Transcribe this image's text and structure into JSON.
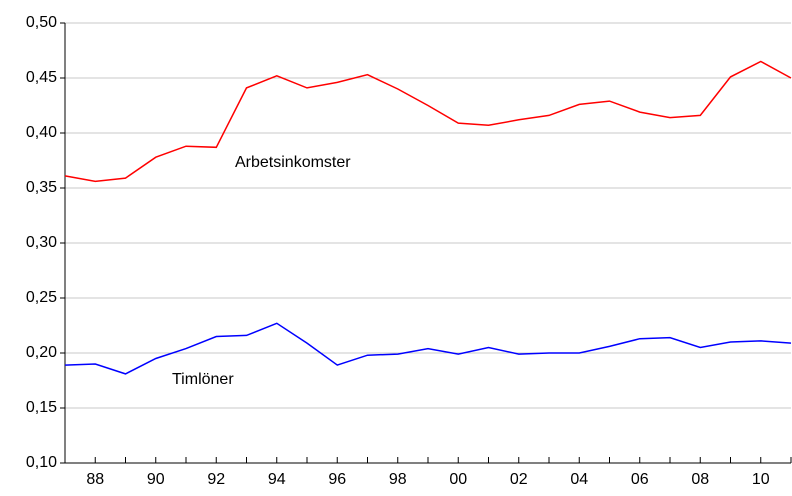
{
  "chart_data": {
    "type": "line",
    "categories": [
      null,
      "88",
      null,
      "90",
      null,
      "92",
      null,
      "94",
      null,
      "96",
      null,
      "98",
      null,
      "00",
      null,
      "02",
      null,
      "04",
      null,
      "06",
      null,
      "08",
      null,
      "10",
      null
    ],
    "series": [
      {
        "name": "Arbetsinkomster",
        "color": "#ff0000",
        "values": [
          0.361,
          0.356,
          0.359,
          0.378,
          0.388,
          0.387,
          0.441,
          0.452,
          0.441,
          0.446,
          0.453,
          0.44,
          0.425,
          0.409,
          0.407,
          0.412,
          0.416,
          0.426,
          0.429,
          0.419,
          0.414,
          0.416,
          0.451,
          0.465,
          0.45
        ]
      },
      {
        "name": "Timlöner",
        "color": "#0000ff",
        "values": [
          0.189,
          0.19,
          0.181,
          0.195,
          0.204,
          0.215,
          0.216,
          0.227,
          0.209,
          0.189,
          0.198,
          0.199,
          0.204,
          0.199,
          0.205,
          0.199,
          0.2,
          0.2,
          0.206,
          0.213,
          0.214,
          0.205,
          0.21,
          0.211,
          0.209
        ]
      }
    ],
    "ylim": [
      0.1,
      0.5
    ],
    "yticks": [
      {
        "value": 0.1,
        "label": "0,10"
      },
      {
        "value": 0.15,
        "label": "0,15"
      },
      {
        "value": 0.2,
        "label": "0,20"
      },
      {
        "value": 0.25,
        "label": "0,25"
      },
      {
        "value": 0.3,
        "label": "0,30"
      },
      {
        "value": 0.35,
        "label": "0,35"
      },
      {
        "value": 0.4,
        "label": "0,40"
      },
      {
        "value": 0.45,
        "label": "0,45"
      },
      {
        "value": 0.5,
        "label": "0,50"
      }
    ],
    "grid": true
  }
}
